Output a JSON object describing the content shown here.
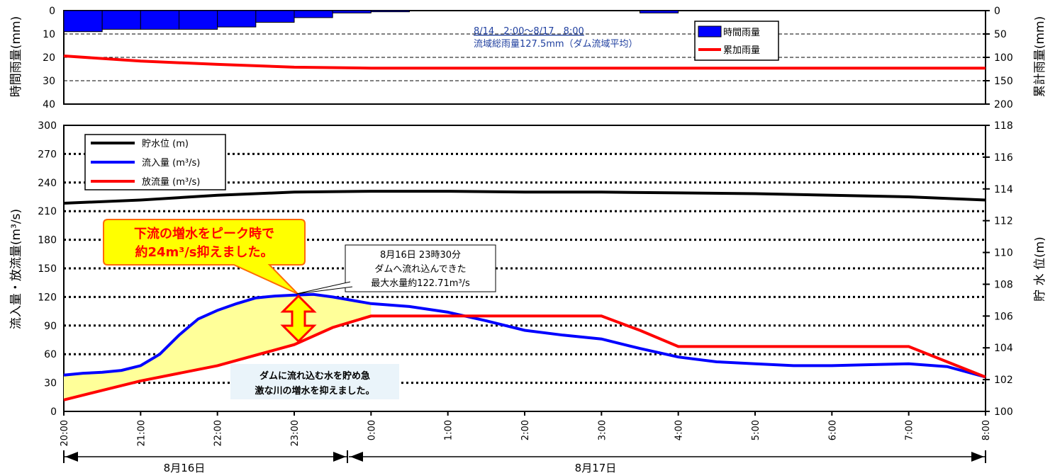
{
  "rain_panel": {
    "ylabel_left": "時間雨量(mm)",
    "ylabel_right": "累計雨量(mm)",
    "left_ticks": [
      "0",
      "10",
      "20",
      "30",
      "40"
    ],
    "right_ticks": [
      "0",
      "50",
      "100",
      "150",
      "200"
    ],
    "note_line1": "8/14　2:00～8/17　8:00",
    "note_line2": "流域総雨量127.5mm（ダム流域平均）",
    "legend_hourly": "時間雨量",
    "legend_cumulative": "累加雨量"
  },
  "flow_panel": {
    "ylabel_left": "流入量・放流量(m³/s)",
    "ylabel_right": "貯 水 位(m)",
    "left_ticks": [
      "0",
      "30",
      "60",
      "90",
      "120",
      "150",
      "180",
      "210",
      "240",
      "270",
      "300"
    ],
    "right_ticks": [
      "100",
      "102",
      "104",
      "106",
      "108",
      "110",
      "112",
      "114",
      "116",
      "118"
    ],
    "legend_level": "貯水位 (m)",
    "legend_inflow": "流入量 (m³/s)",
    "legend_outflow": "放流量 (m³/s)",
    "callout_line1": "下流の増水をピーク時で",
    "callout_line2": "約24m³/s抑えました。",
    "peak_line1": "8月16日 23時30分",
    "peak_line2": "ダムへ流れ込んできた",
    "peak_line3": "最大水量約122.71m³/s",
    "storage_line1": "ダムに流れ込む水を貯め急",
    "storage_line2": "激な川の増水を抑えました。"
  },
  "x_ticks": [
    "20:00",
    "21:00",
    "22:00",
    "23:00",
    "0:00",
    "1:00",
    "2:00",
    "3:00",
    "4:00",
    "5:00",
    "6:00",
    "7:00",
    "8:00"
  ],
  "day_labels": [
    "8月16日",
    "8月17日"
  ],
  "colors": {
    "hourly_bar": "#0000ff",
    "cumulative": "#ff0000",
    "level": "#000000",
    "inflow": "#0000ff",
    "outflow": "#ff0000",
    "storage_fill": "#ffff99",
    "callout_fill": "#ffff00",
    "callout_text": "#ff0000",
    "note_text": "#1f3f9f"
  },
  "chart_data": [
    {
      "type": "bar",
      "name": "hourly-rainfall",
      "x_hours": [
        0,
        0.5,
        1,
        1.5,
        2,
        2.5,
        3,
        3.5,
        4,
        4.5,
        5,
        5.5,
        6,
        6.5,
        7,
        7.5,
        8,
        8.5,
        9,
        9.5,
        10,
        10.5,
        11,
        11.5
      ],
      "values": [
        9,
        8,
        8,
        8,
        7,
        5,
        3,
        1,
        0.5,
        0,
        0,
        0,
        0,
        0,
        0,
        1,
        0,
        0,
        0,
        0,
        0,
        0,
        0,
        0
      ],
      "ylim": [
        0,
        40
      ],
      "series": [
        {
          "name": "時間雨量"
        }
      ]
    },
    {
      "type": "line",
      "name": "cumulative-rainfall",
      "x_hours": [
        0,
        1,
        2,
        3,
        4,
        5,
        6,
        7,
        8,
        9,
        10,
        11,
        12
      ],
      "values": [
        97,
        108,
        115,
        121,
        123,
        123,
        123,
        123,
        123,
        123,
        123,
        123,
        123
      ],
      "ylim": [
        0,
        200
      ],
      "series": [
        {
          "name": "累加雨量"
        }
      ]
    },
    {
      "type": "line",
      "name": "reservoir-level",
      "x_hours": [
        0,
        1,
        2,
        3,
        4,
        5,
        6,
        7,
        8,
        9,
        10,
        11,
        12
      ],
      "values": [
        113.1,
        113.3,
        113.6,
        113.8,
        113.85,
        113.85,
        113.8,
        113.8,
        113.75,
        113.7,
        113.6,
        113.5,
        113.3
      ],
      "ylim": [
        100,
        118
      ],
      "series": [
        {
          "name": "貯水位"
        }
      ]
    },
    {
      "type": "line",
      "name": "inflow",
      "x_hours": [
        0,
        0.25,
        0.5,
        0.75,
        1,
        1.25,
        1.5,
        1.75,
        2,
        2.25,
        2.5,
        2.75,
        3,
        3.25,
        3.5,
        4,
        4.5,
        5,
        5.5,
        6,
        6.5,
        7,
        7.5,
        8,
        8.5,
        9,
        9.5,
        10,
        10.5,
        11,
        11.5,
        12
      ],
      "values": [
        38,
        40,
        41,
        43,
        48,
        60,
        80,
        97,
        106,
        113,
        119,
        121,
        122,
        122.7,
        120,
        113,
        110,
        104,
        95,
        85,
        80,
        76,
        66,
        57,
        52,
        50,
        48,
        48,
        49,
        50,
        47,
        36
      ],
      "ylim": [
        0,
        300
      ],
      "series": [
        {
          "name": "流入量"
        }
      ]
    },
    {
      "type": "line",
      "name": "outflow",
      "x_hours": [
        0,
        1,
        2,
        3,
        3.5,
        4,
        5,
        6,
        6.5,
        7,
        7.5,
        8,
        9,
        10,
        11,
        12
      ],
      "values": [
        12,
        32,
        48,
        70,
        88,
        100,
        100,
        100,
        100,
        100,
        85,
        68,
        68,
        68,
        68,
        36
      ],
      "ylim": [
        0,
        300
      ],
      "series": [
        {
          "name": "放流量"
        }
      ]
    }
  ]
}
